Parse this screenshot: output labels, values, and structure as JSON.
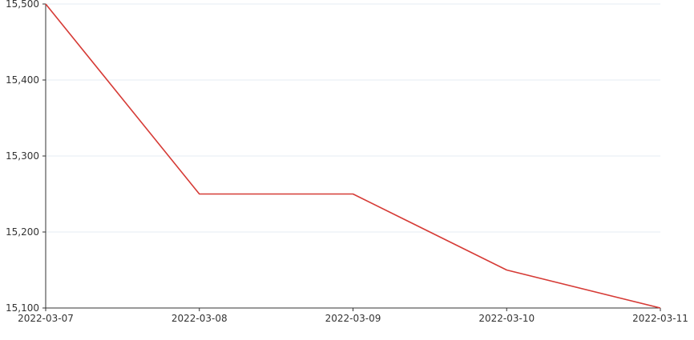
{
  "chart_data": {
    "type": "line",
    "title": "",
    "xlabel": "",
    "ylabel": "",
    "categories": [
      "2022-03-07",
      "2022-03-08",
      "2022-03-09",
      "2022-03-10",
      "2022-03-11"
    ],
    "series": [
      {
        "values": [
          15500,
          15250,
          15250,
          15150,
          15100
        ],
        "color": "#d63b36"
      }
    ],
    "ylim": [
      15100,
      15500
    ],
    "yticks": [
      15100,
      15200,
      15300,
      15400,
      15500
    ],
    "ytick_labels": [
      "15,100",
      "15,200",
      "15,300",
      "15,400",
      "15,500"
    ],
    "grid": true,
    "legend": "none"
  }
}
